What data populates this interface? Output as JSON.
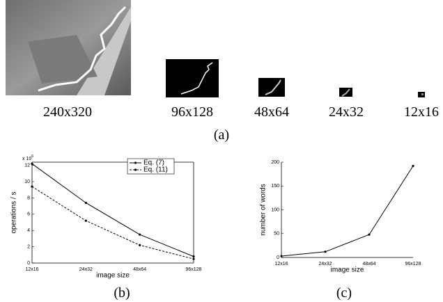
{
  "images": [
    {
      "label": "240x320"
    },
    {
      "label": "96x128"
    },
    {
      "label": "48x64"
    },
    {
      "label": "24x32"
    },
    {
      "label": "12x16"
    }
  ],
  "caption_a": "(a)",
  "chart_data": [
    {
      "type": "line",
      "caption": "(b)",
      "x_label": "image size",
      "y_label": "operations / s",
      "y_multiplier": "x 10",
      "y_multiplier_exp": "6",
      "categories": [
        "12x16",
        "24x32",
        "48x64",
        "96x128"
      ],
      "series": [
        {
          "name": "Eq. (7)",
          "color": "#000000",
          "style": "solid",
          "values": [
            12.2,
            7.4,
            3.5,
            0.8
          ]
        },
        {
          "name": "Eq. (11)",
          "color": "#000000",
          "style": "dashed",
          "values": [
            9.4,
            5.2,
            2.2,
            0.5
          ]
        }
      ],
      "ylim": [
        0,
        12.4
      ],
      "yticks": [
        0,
        2,
        4,
        6,
        8,
        10,
        12
      ],
      "legend": "upper right",
      "box": true
    },
    {
      "type": "line",
      "caption": "(c)",
      "x_label": "image size",
      "y_label": "number of words",
      "categories": [
        "12x16",
        "24x32",
        "48x64",
        "96x128"
      ],
      "series": [
        {
          "color": "#000000",
          "style": "solid",
          "values": [
            3,
            12,
            48,
            192
          ]
        }
      ],
      "ylim": [
        0,
        200
      ],
      "yticks": [
        0,
        50,
        100,
        150,
        200
      ],
      "box": false
    }
  ]
}
